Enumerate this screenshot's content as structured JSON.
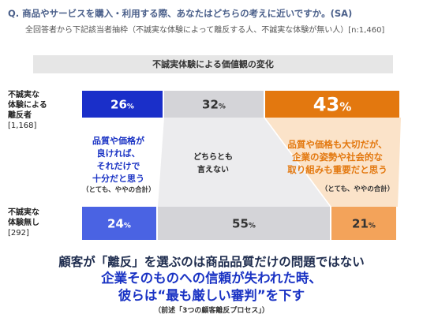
{
  "question": {
    "title": "Q. 商品やサービスを購入・利用する際、あなたはどちらの考えに近いですか。(SA)",
    "subtitle": "全回答者から下記該当者抽枠（不誠実な体験によって離反する人、不誠実な体験が無い人）[n:1,460]"
  },
  "chart_data": {
    "type": "bar",
    "stacked": true,
    "orientation": "horizontal",
    "title": "不誠実体験による価値観の変化",
    "categories": [
      "不誠実な体験による離反者 [1,168]",
      "不誠実な体験無し [292]"
    ],
    "series": [
      {
        "values": [
          26,
          24
        ],
        "color_top": "#1a2fc9",
        "color_bottom": "#4a63e3"
      },
      {
        "values": [
          32,
          55
        ],
        "color_top": "#d4d4d8",
        "color_bottom": "#d4d4d8"
      },
      {
        "values": [
          43,
          21
        ],
        "color_top": "#e3780f",
        "color_bottom": "#f3a35a"
      }
    ],
    "xlim": [
      0,
      101
    ],
    "unit": "%"
  },
  "row_labels": [
    {
      "line1": "不誠実な",
      "line2": "体験による",
      "line3": "離反者",
      "n": "[1,168]"
    },
    {
      "line1": "不誠実な",
      "line2": "体験無し",
      "line3": "",
      "n": "[292]"
    }
  ],
  "annotations": {
    "quality": {
      "l1": "品質や価格が",
      "l2": "良ければ、",
      "l3": "それだけで",
      "l4": "十分だと思う",
      "note": "（とても、ややの合計）"
    },
    "neutral": {
      "l1": "どちらとも",
      "l2": "言えない"
    },
    "social": {
      "l1": "品質や価格も大切だが、",
      "l2": "企業の姿勢や社会的な",
      "l3": "取り組みも重要だと思う",
      "note": "（とても、ややの合計）"
    }
  },
  "footer": {
    "line1": "顧客が「離反」を選ぶのは商品品質だけの問題ではない",
    "line2": "企業そのものへの信頼が失われた時、",
    "line3": "彼らは“最も厳しい審判”を下す",
    "note": "（前述「3つの顧客離反プロセス」）"
  },
  "colors": {
    "blue_text": "#1a33c4",
    "orange_text": "#e3780f",
    "navy_text": "#1f2d4f"
  }
}
